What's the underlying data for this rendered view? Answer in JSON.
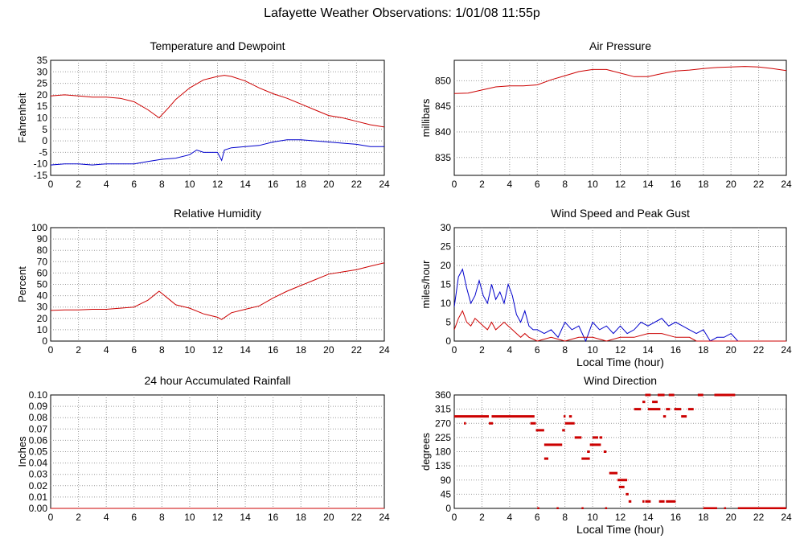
{
  "page": {
    "title": "Lafayette Weather Observations: 1/01/08 11:55p"
  },
  "chart_data": [
    {
      "type": "line",
      "title": "Temperature and Dewpoint",
      "xlabel": "",
      "ylabel": "Fahrenheit",
      "xlim": [
        0,
        24
      ],
      "ylim": [
        -15,
        35
      ],
      "xticks": [
        0,
        2,
        4,
        6,
        8,
        10,
        12,
        14,
        16,
        18,
        20,
        22,
        24
      ],
      "yticks": [
        -15,
        -10,
        -5,
        0,
        5,
        10,
        15,
        20,
        25,
        30,
        35
      ],
      "grid": true,
      "series": [
        {
          "color": "#cc0000",
          "x": [
            0,
            1,
            2,
            3,
            4,
            5,
            6,
            7,
            7.8,
            8.5,
            9,
            10,
            11,
            12,
            12.5,
            13,
            14,
            15,
            16,
            17,
            18,
            19,
            20,
            21,
            22,
            23,
            24
          ],
          "y": [
            19.5,
            20,
            19.5,
            19,
            19,
            18.5,
            17,
            13.5,
            10,
            14.5,
            18,
            23,
            26.5,
            28,
            28.5,
            28,
            26,
            23,
            20.5,
            18.5,
            16,
            13.5,
            11,
            10,
            8.5,
            7,
            6
          ]
        },
        {
          "color": "#0000cc",
          "x": [
            0,
            1,
            2,
            3,
            4,
            5,
            6,
            6.5,
            7,
            8,
            9,
            10,
            10.5,
            11,
            12,
            12.3,
            12.5,
            13,
            14,
            15,
            16,
            17,
            18,
            19,
            20,
            21,
            22,
            23,
            24
          ],
          "y": [
            -10.5,
            -10,
            -10,
            -10.5,
            -10,
            -10,
            -10,
            -9.5,
            -9,
            -8,
            -7.5,
            -6,
            -4,
            -5,
            -5,
            -8.5,
            -4,
            -3,
            -2.5,
            -2,
            -0.5,
            0.5,
            0.5,
            0,
            -0.5,
            -1,
            -1.5,
            -2.5,
            -2.5
          ]
        }
      ]
    },
    {
      "type": "line",
      "title": "Air Pressure",
      "xlabel": "",
      "ylabel": "millibars",
      "xlim": [
        0,
        24
      ],
      "ylim": [
        831.5,
        854
      ],
      "xticks": [
        0,
        2,
        4,
        6,
        8,
        10,
        12,
        14,
        16,
        18,
        20,
        22,
        24
      ],
      "yticks": [
        835,
        840,
        845,
        850
      ],
      "grid": true,
      "series": [
        {
          "color": "#cc0000",
          "x": [
            0,
            1,
            2,
            3,
            4,
            5,
            6,
            7,
            8,
            9,
            10,
            11,
            12,
            13,
            14,
            15,
            16,
            17,
            18,
            19,
            20,
            21,
            22,
            23,
            24
          ],
          "y": [
            847.5,
            847.6,
            848.2,
            848.8,
            849,
            849,
            849.2,
            850.2,
            851,
            851.8,
            852.2,
            852.2,
            851.5,
            850.8,
            850.8,
            851.4,
            851.9,
            852.1,
            852.4,
            852.6,
            852.7,
            852.8,
            852.7,
            852.4,
            852
          ]
        }
      ]
    },
    {
      "type": "line",
      "title": "Relative Humidity",
      "xlabel": "",
      "ylabel": "Percent",
      "xlim": [
        0,
        24
      ],
      "ylim": [
        0,
        100
      ],
      "xticks": [
        0,
        2,
        4,
        6,
        8,
        10,
        12,
        14,
        16,
        18,
        20,
        22,
        24
      ],
      "yticks": [
        0,
        10,
        20,
        30,
        40,
        50,
        60,
        70,
        80,
        90,
        100
      ],
      "grid": true,
      "series": [
        {
          "color": "#cc0000",
          "x": [
            0,
            1,
            2,
            3,
            4,
            5,
            6,
            7,
            7.8,
            8.5,
            9,
            10,
            11,
            12,
            12.3,
            13,
            14,
            15,
            16,
            17,
            18,
            19,
            20,
            21,
            22,
            23,
            24
          ],
          "y": [
            27,
            27.5,
            27.5,
            28,
            28,
            29,
            30,
            36,
            44,
            37,
            32,
            29,
            24,
            21,
            19,
            25,
            28,
            31,
            38,
            44,
            49,
            54,
            59,
            61,
            63,
            66,
            69
          ]
        }
      ]
    },
    {
      "type": "line",
      "title": "Wind Speed and Peak Gust",
      "xlabel": "Local Time (hour)",
      "ylabel": "miles/hour",
      "xlim": [
        0,
        24
      ],
      "ylim": [
        0,
        30
      ],
      "xticks": [
        0,
        2,
        4,
        6,
        8,
        10,
        12,
        14,
        16,
        18,
        20,
        22,
        24
      ],
      "yticks": [
        0,
        5,
        10,
        15,
        20,
        25,
        30
      ],
      "grid": true,
      "series": [
        {
          "color": "#0000cc",
          "x": [
            0,
            0.3,
            0.6,
            0.9,
            1.2,
            1.5,
            1.8,
            2.1,
            2.4,
            2.7,
            3,
            3.3,
            3.6,
            3.9,
            4.2,
            4.5,
            4.8,
            5.1,
            5.4,
            5.7,
            6,
            6.5,
            7,
            7.5,
            8,
            8.5,
            9,
            9.5,
            10,
            10.5,
            11,
            11.5,
            12,
            12.5,
            13,
            13.5,
            14,
            14.5,
            15,
            15.5,
            16,
            16.5,
            17,
            17.5,
            18,
            18.5,
            19,
            19.5,
            20,
            20.5,
            21,
            24
          ],
          "y": [
            9,
            17,
            19,
            14,
            10,
            12,
            16,
            12,
            10,
            15,
            11,
            13,
            10,
            15,
            12,
            7,
            5,
            8,
            4,
            3,
            3,
            2,
            3,
            1,
            5,
            3,
            4,
            0,
            5,
            3,
            4,
            2,
            4,
            2,
            3,
            5,
            4,
            5,
            6,
            4,
            5,
            4,
            3,
            2,
            3,
            0,
            1,
            1,
            2,
            0,
            0,
            0
          ]
        },
        {
          "color": "#cc0000",
          "x": [
            0,
            0.3,
            0.6,
            0.9,
            1.2,
            1.5,
            1.8,
            2.1,
            2.4,
            2.7,
            3,
            3.3,
            3.6,
            3.9,
            4.2,
            4.5,
            4.8,
            5.1,
            5.4,
            6,
            7,
            8,
            9,
            10,
            11,
            12,
            13,
            14,
            15,
            16,
            17,
            17.5,
            24
          ],
          "y": [
            3,
            6,
            8,
            5,
            4,
            6,
            5,
            4,
            3,
            5,
            3,
            4,
            5,
            4,
            3,
            2,
            1,
            2,
            1,
            0,
            1,
            0,
            1,
            1,
            0,
            1,
            1,
            2,
            2,
            1,
            1,
            0,
            0
          ]
        }
      ]
    },
    {
      "type": "line",
      "title": "24 hour Accumulated Rainfall",
      "xlabel": "",
      "ylabel": "Inches",
      "xlim": [
        0,
        24
      ],
      "ylim": [
        0,
        0.1
      ],
      "xticks": [
        0,
        2,
        4,
        6,
        8,
        10,
        12,
        14,
        16,
        18,
        20,
        22,
        24
      ],
      "yticks": [
        "0.00",
        "0.01",
        "0.02",
        "0.03",
        "0.04",
        "0.05",
        "0.06",
        "0.07",
        "0.08",
        "0.09",
        "0.10"
      ],
      "grid": true,
      "series": [
        {
          "color": "#cc0000",
          "x": [
            0,
            24
          ],
          "y": [
            0,
            0
          ]
        }
      ]
    },
    {
      "type": "scatter",
      "title": "Wind Direction",
      "xlabel": "Local Time (hour)",
      "ylabel": "degrees",
      "xlim": [
        0,
        24
      ],
      "ylim": [
        0,
        360
      ],
      "xticks": [
        0,
        2,
        4,
        6,
        8,
        10,
        12,
        14,
        16,
        18,
        20,
        22,
        24
      ],
      "yticks": [
        0,
        45,
        90,
        135,
        180,
        225,
        270,
        315,
        360
      ],
      "grid": true,
      "series": [
        {
          "color": "#cc0000",
          "segments": [
            [
              0,
              2.5,
              292
            ],
            [
              2.7,
              5.8,
              292
            ],
            [
              0.7,
              0.8,
              270
            ],
            [
              2.5,
              2.8,
              270
            ],
            [
              5.5,
              5.9,
              270
            ],
            [
              5.9,
              6.5,
              248
            ],
            [
              6.5,
              7.8,
              202
            ],
            [
              6.5,
              6.8,
              158
            ],
            [
              7.8,
              8.0,
              248
            ],
            [
              8.0,
              8.7,
              270
            ],
            [
              7.9,
              8.0,
              292
            ],
            [
              8.3,
              8.5,
              292
            ],
            [
              8.7,
              9.2,
              225
            ],
            [
              9.2,
              9.8,
              158
            ],
            [
              9.6,
              9.8,
              180
            ],
            [
              9.8,
              10.6,
              202
            ],
            [
              10.0,
              10.4,
              225
            ],
            [
              10.5,
              10.7,
              225
            ],
            [
              10.8,
              11.0,
              180
            ],
            [
              11.2,
              11.8,
              112
            ],
            [
              11.8,
              12.5,
              90
            ],
            [
              11.9,
              12.3,
              68
            ],
            [
              12.4,
              12.6,
              45
            ],
            [
              12.6,
              12.8,
              22
            ],
            [
              13.0,
              13.5,
              315
            ],
            [
              13.6,
              13.8,
              338
            ],
            [
              13.8,
              14.2,
              360
            ],
            [
              14.0,
              14.9,
              315
            ],
            [
              14.3,
              14.7,
              338
            ],
            [
              14.7,
              15.2,
              360
            ],
            [
              15.1,
              15.3,
              292
            ],
            [
              15.3,
              15.6,
              315
            ],
            [
              15.5,
              15.9,
              360
            ],
            [
              15.9,
              16.4,
              315
            ],
            [
              16.4,
              16.8,
              292
            ],
            [
              16.9,
              17.3,
              315
            ],
            [
              17.6,
              18.0,
              360
            ],
            [
              18.8,
              20.3,
              360
            ],
            [
              18.0,
              19.0,
              0
            ],
            [
              19.5,
              19.6,
              0
            ],
            [
              20.5,
              24.0,
              0
            ],
            [
              6.0,
              6.1,
              0
            ],
            [
              7.4,
              7.5,
              0
            ],
            [
              9.2,
              9.3,
              0
            ],
            [
              10.9,
              11.0,
              0
            ],
            [
              13.8,
              14.2,
              22
            ],
            [
              14.8,
              15.2,
              22
            ],
            [
              15.3,
              16.0,
              22
            ],
            [
              13.6,
              13.7,
              22
            ]
          ]
        }
      ]
    }
  ]
}
